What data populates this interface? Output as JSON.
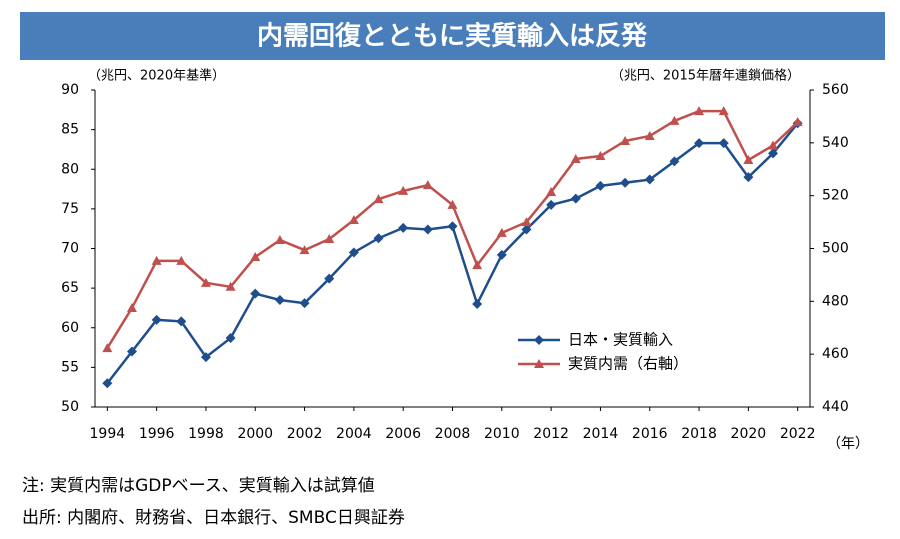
{
  "chart_data": {
    "type": "line",
    "title": "内需回復とともに実質輸入は反発",
    "y_label": "（兆円、2020年基準）",
    "y2_label": "（兆円、2015年暦年連鎖価格）",
    "x_label": "（年）",
    "x": [
      1994,
      1995,
      1996,
      1997,
      1998,
      1999,
      2000,
      2001,
      2002,
      2003,
      2004,
      2005,
      2006,
      2007,
      2008,
      2009,
      2010,
      2011,
      2012,
      2013,
      2014,
      2015,
      2016,
      2017,
      2018,
      2019,
      2020,
      2021,
      2022
    ],
    "xlim": [
      1993.5,
      2022.5
    ],
    "xticks": [
      1994,
      1996,
      1998,
      2000,
      2002,
      2004,
      2006,
      2008,
      2010,
      2012,
      2014,
      2016,
      2018,
      2020,
      2022
    ],
    "ylim": [
      50,
      90
    ],
    "yticks": [
      50,
      55,
      60,
      65,
      70,
      75,
      80,
      85,
      90
    ],
    "y2lim": [
      440,
      560
    ],
    "y2ticks": [
      440,
      460,
      480,
      500,
      520,
      540,
      560
    ],
    "grid": false,
    "legend": "lower right",
    "series": [
      {
        "name": "日本・実質輸入",
        "color": "#1f4e8c",
        "marker": "diamond",
        "values": [
          53.0,
          57.0,
          61.0,
          60.8,
          56.3,
          58.7,
          64.3,
          63.5,
          63.1,
          66.2,
          69.5,
          71.3,
          72.6,
          72.4,
          72.8,
          63.0,
          69.2,
          72.4,
          75.5,
          76.3,
          77.9,
          78.3,
          78.7,
          81.0,
          83.3,
          83.3,
          79.0,
          82.0,
          85.8
        ]
      },
      {
        "name": "実質内需（右軸）",
        "color": "#c0504d",
        "marker": "triangle",
        "axis": "y2",
        "values": [
          462.3,
          477.5,
          495.3,
          495.3,
          487.0,
          485.5,
          496.8,
          503.2,
          499.4,
          503.6,
          510.8,
          518.7,
          521.8,
          524.0,
          516.5,
          493.7,
          505.9,
          510.0,
          521.4,
          533.9,
          535.0,
          540.7,
          542.6,
          548.3,
          552.0,
          552.0,
          533.5,
          539.0,
          547.9
        ]
      }
    ],
    "notes": [
      "注: 実質内需はGDPベース、実質輸入は試算値",
      "出所: 内閣府、財務省、日本銀行、SMBC日興証券"
    ]
  }
}
